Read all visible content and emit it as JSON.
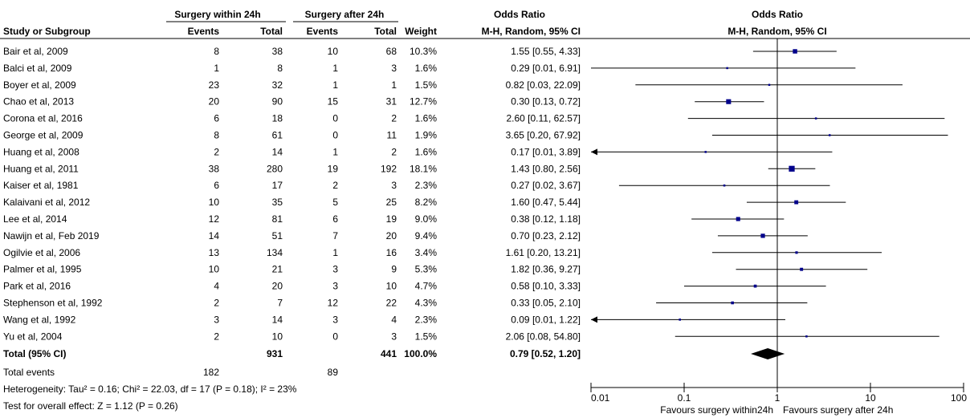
{
  "headers": {
    "group1": "Surgery within 24h",
    "group2": "Surgery after 24h",
    "or_group": "Odds Ratio",
    "plot_title": "Odds Ratio",
    "study": "Study or Subgroup",
    "events": "Events",
    "total": "Total",
    "weight": "Weight",
    "method": "M-H, Random, 95% CI",
    "plot_method": "M-H, Random, 95% CI"
  },
  "summary": {
    "label": "Total (95% CI)",
    "total1": "931",
    "total2": "441",
    "weight": "100.0%",
    "ci_text": "0.79 [0.52, 1.20]",
    "total_events_label": "Total events",
    "events1": "182",
    "events2": "89",
    "heterogeneity": "Heterogeneity: Tau² = 0.16; Chi² = 22.03, df = 17 (P = 0.18); I² = 23%",
    "overall": "Test for overall effect: Z = 1.12 (P = 0.26)"
  },
  "axis": {
    "favours_left": "Favours surgery within24h",
    "favours_right": "Favours surgery after 24h"
  },
  "chart_data": {
    "type": "forest",
    "scale": "log",
    "xlim": [
      0.01,
      100
    ],
    "ticks": [
      {
        "value": 0.01,
        "label": "0.01"
      },
      {
        "value": 0.1,
        "label": "0.1"
      },
      {
        "value": 1,
        "label": "1"
      },
      {
        "value": 10,
        "label": "10"
      },
      {
        "value": 100,
        "label": "100"
      }
    ],
    "studies": [
      {
        "name": "Bair et al, 2009",
        "e1": "8",
        "t1": "38",
        "e2": "10",
        "t2": "68",
        "weight": "10.3%",
        "or": 1.55,
        "lo": 0.55,
        "hi": 4.33,
        "ci_text": "1.55 [0.55, 4.33]"
      },
      {
        "name": "Balci et al, 2009",
        "e1": "1",
        "t1": "8",
        "e2": "1",
        "t2": "3",
        "weight": "1.6%",
        "or": 0.29,
        "lo": 0.01,
        "hi": 6.91,
        "ci_text": "0.29 [0.01, 6.91]"
      },
      {
        "name": "Boyer et al, 2009",
        "e1": "23",
        "t1": "32",
        "e2": "1",
        "t2": "1",
        "weight": "1.5%",
        "or": 0.82,
        "lo": 0.03,
        "hi": 22.09,
        "ci_text": "0.82 [0.03, 22.09]"
      },
      {
        "name": "Chao et al, 2013",
        "e1": "20",
        "t1": "90",
        "e2": "15",
        "t2": "31",
        "weight": "12.7%",
        "or": 0.3,
        "lo": 0.13,
        "hi": 0.72,
        "ci_text": "0.30 [0.13, 0.72]"
      },
      {
        "name": "Corona et al, 2016",
        "e1": "6",
        "t1": "18",
        "e2": "0",
        "t2": "2",
        "weight": "1.6%",
        "or": 2.6,
        "lo": 0.11,
        "hi": 62.57,
        "ci_text": "2.60 [0.11, 62.57]"
      },
      {
        "name": "George et al, 2009",
        "e1": "8",
        "t1": "61",
        "e2": "0",
        "t2": "11",
        "weight": "1.9%",
        "or": 3.65,
        "lo": 0.2,
        "hi": 67.92,
        "ci_text": "3.65 [0.20, 67.92]"
      },
      {
        "name": "Huang et al, 2008",
        "e1": "2",
        "t1": "14",
        "e2": "1",
        "t2": "2",
        "weight": "1.6%",
        "or": 0.17,
        "lo": 0.01,
        "hi": 3.89,
        "ci_text": "0.17 [0.01, 3.89]"
      },
      {
        "name": "Huang et al, 2011",
        "e1": "38",
        "t1": "280",
        "e2": "19",
        "t2": "192",
        "weight": "18.1%",
        "or": 1.43,
        "lo": 0.8,
        "hi": 2.56,
        "ci_text": "1.43 [0.80, 2.56]"
      },
      {
        "name": "Kaiser et al, 1981",
        "e1": "6",
        "t1": "17",
        "e2": "2",
        "t2": "3",
        "weight": "2.3%",
        "or": 0.27,
        "lo": 0.02,
        "hi": 3.67,
        "ci_text": "0.27 [0.02, 3.67]"
      },
      {
        "name": "Kalaivani et al, 2012",
        "e1": "10",
        "t1": "35",
        "e2": "5",
        "t2": "25",
        "weight": "8.2%",
        "or": 1.6,
        "lo": 0.47,
        "hi": 5.44,
        "ci_text": "1.60 [0.47, 5.44]"
      },
      {
        "name": "Lee et al, 2014",
        "e1": "12",
        "t1": "81",
        "e2": "6",
        "t2": "19",
        "weight": "9.0%",
        "or": 0.38,
        "lo": 0.12,
        "hi": 1.18,
        "ci_text": "0.38 [0.12, 1.18]"
      },
      {
        "name": "Nawijn et al, Feb 2019",
        "e1": "14",
        "t1": "51",
        "e2": "7",
        "t2": "20",
        "weight": "9.4%",
        "or": 0.7,
        "lo": 0.23,
        "hi": 2.12,
        "ci_text": "0.70 [0.23, 2.12]"
      },
      {
        "name": "Ogilvie et al, 2006",
        "e1": "13",
        "t1": "134",
        "e2": "1",
        "t2": "16",
        "weight": "3.4%",
        "or": 1.61,
        "lo": 0.2,
        "hi": 13.21,
        "ci_text": "1.61 [0.20, 13.21]"
      },
      {
        "name": "Palmer et al, 1995",
        "e1": "10",
        "t1": "21",
        "e2": "3",
        "t2": "9",
        "weight": "5.3%",
        "or": 1.82,
        "lo": 0.36,
        "hi": 9.27,
        "ci_text": "1.82 [0.36, 9.27]"
      },
      {
        "name": "Park et al, 2016",
        "e1": "4",
        "t1": "20",
        "e2": "3",
        "t2": "10",
        "weight": "4.7%",
        "or": 0.58,
        "lo": 0.1,
        "hi": 3.33,
        "ci_text": "0.58 [0.10, 3.33]"
      },
      {
        "name": "Stephenson et al, 1992",
        "e1": "2",
        "t1": "7",
        "e2": "12",
        "t2": "22",
        "weight": "4.3%",
        "or": 0.33,
        "lo": 0.05,
        "hi": 2.1,
        "ci_text": "0.33 [0.05, 2.10]"
      },
      {
        "name": "Wang et al, 1992",
        "e1": "3",
        "t1": "14",
        "e2": "3",
        "t2": "4",
        "weight": "2.3%",
        "or": 0.09,
        "lo": 0.01,
        "hi": 1.22,
        "ci_text": "0.09 [0.01, 1.22]"
      },
      {
        "name": "Yu et al, 2004",
        "e1": "2",
        "t1": "10",
        "e2": "0",
        "t2": "3",
        "weight": "1.5%",
        "or": 2.06,
        "lo": 0.08,
        "hi": 54.8,
        "ci_text": "2.06 [0.08, 54.80]"
      }
    ],
    "pooled": {
      "or": 0.79,
      "lo": 0.52,
      "hi": 1.2
    }
  }
}
